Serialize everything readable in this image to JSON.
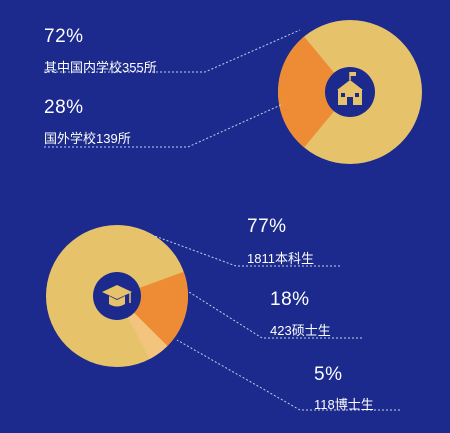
{
  "colors": {
    "background": "#1b2a8c",
    "major": "#e6c36a",
    "second": "#ee8c35",
    "third": "#f2c47e",
    "icon_bg": "#1b2a8c",
    "icon_fg": "#e6c36a",
    "leader": "#c9cde8"
  },
  "chart_data": [
    {
      "type": "pie",
      "slices": [
        {
          "percent_label": "72%",
          "label": "其中国内学校355所",
          "value": 72
        },
        {
          "percent_label": "28%",
          "label": "国外学校139所",
          "value": 28
        }
      ],
      "icon": "school-building-icon"
    },
    {
      "type": "pie",
      "slices": [
        {
          "percent_label": "77%",
          "label": "1811本科生",
          "value": 77
        },
        {
          "percent_label": "18%",
          "label": "423硕士生",
          "value": 18
        },
        {
          "percent_label": "5%",
          "label": "118博士生",
          "value": 5
        }
      ],
      "icon": "graduation-cap-icon"
    }
  ]
}
